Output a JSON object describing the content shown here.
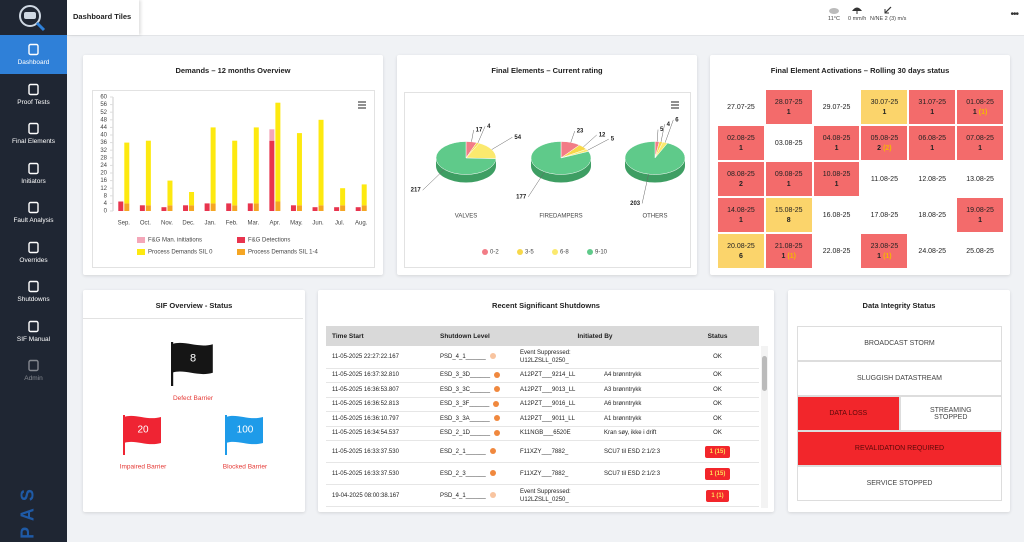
{
  "header": {
    "tab": "Dashboard Tiles",
    "weather": {
      "temperature": "11°C",
      "precipitation": "0 mm/h",
      "wind": "N/NE 2 (3) m/s"
    },
    "menu": "•••"
  },
  "sidebar": {
    "items": [
      "Dashboard",
      "Proof Tests",
      "Final Elements",
      "Initiators",
      "Fault Analysis",
      "Overrides",
      "Shutdowns",
      "SIF Manual",
      "Admin"
    ],
    "active": 0,
    "disabled": [
      8
    ],
    "brand": "PAS"
  },
  "chart_data": [
    {
      "type": "bar",
      "title": "Demands – 12 months Overview",
      "categories": [
        "Sep.",
        "Oct.",
        "Nov.",
        "Dec.",
        "Jan.",
        "Feb.",
        "Mar.",
        "Apr.",
        "May.",
        "Jun.",
        "Jul.",
        "Aug."
      ],
      "series": [
        {
          "name": "F&G Man. initiations",
          "color": "#f4a7b9",
          "stack": "F&G",
          "values": [
            0,
            0,
            0,
            0,
            0,
            0,
            0,
            6,
            0,
            0,
            0,
            0
          ]
        },
        {
          "name": "F&G Detections",
          "color": "#e8344e",
          "stack": "F&G",
          "values": [
            5,
            3,
            2,
            3,
            4,
            4,
            4,
            37,
            3,
            2,
            2,
            2
          ]
        },
        {
          "name": "Process Demands SIL 0",
          "color": "#fde910",
          "stack": "Process",
          "values": [
            32,
            34,
            13,
            7,
            40,
            34,
            40,
            52,
            38,
            45,
            9,
            11
          ]
        },
        {
          "name": "Process Demands SIL 1-4",
          "color": "#f5a623",
          "stack": "Process",
          "values": [
            4,
            3,
            3,
            3,
            4,
            3,
            4,
            5,
            3,
            3,
            3,
            3
          ]
        }
      ],
      "ylim": [
        0,
        60
      ],
      "yticks": [
        0,
        4,
        8,
        12,
        16,
        20,
        24,
        28,
        32,
        36,
        40,
        44,
        48,
        52,
        56,
        60
      ],
      "grid": false
    },
    {
      "type": "pie",
      "title": "Final Elements – Current rating",
      "categories": [
        "0-2",
        "3-5",
        "6-8",
        "9-10"
      ],
      "colors": [
        "#f27c86",
        "#f7d84a",
        "#fbe96e",
        "#5fca8a"
      ],
      "series": [
        {
          "name": "VALVES",
          "values": [
            17,
            4,
            54,
            217
          ]
        },
        {
          "name": "FIREDAMPERS",
          "values": [
            23,
            12,
            5,
            177
          ]
        },
        {
          "name": "OTHERS",
          "values": [
            5,
            4,
            6,
            203
          ]
        }
      ]
    }
  ],
  "activations": {
    "title": "Final Element Activations – Rolling 30 days status",
    "cells": [
      {
        "date": "27.07-25",
        "color": "#ffffff"
      },
      {
        "date": "28.07-25",
        "count": 1,
        "color": "#f36b6b"
      },
      {
        "date": "29.07-25",
        "color": "#ffffff"
      },
      {
        "date": "30.07-25",
        "count": 1,
        "color": "#fbd46b"
      },
      {
        "date": "31.07-25",
        "count": 1,
        "color": "#f36b6b"
      },
      {
        "date": "01.08-25",
        "count": 1,
        "extra": "(1)",
        "color": "#f36b6b"
      },
      {
        "date": "02.08-25",
        "count": 1,
        "color": "#f36b6b"
      },
      {
        "date": "03.08-25",
        "color": "#ffffff"
      },
      {
        "date": "04.08-25",
        "count": 1,
        "color": "#f36b6b"
      },
      {
        "date": "05.08-25",
        "count": 2,
        "extra": "(2)",
        "color": "#f36b6b"
      },
      {
        "date": "06.08-25",
        "count": 1,
        "color": "#f36b6b"
      },
      {
        "date": "07.08-25",
        "count": 1,
        "color": "#f36b6b"
      },
      {
        "date": "08.08-25",
        "count": 2,
        "color": "#f36b6b"
      },
      {
        "date": "09.08-25",
        "count": 1,
        "color": "#f36b6b"
      },
      {
        "date": "10.08-25",
        "count": 1,
        "color": "#f36b6b"
      },
      {
        "date": "11.08-25",
        "color": "#ffffff"
      },
      {
        "date": "12.08-25",
        "color": "#ffffff"
      },
      {
        "date": "13.08-25",
        "color": "#ffffff"
      },
      {
        "date": "14.08-25",
        "count": 1,
        "color": "#f36b6b"
      },
      {
        "date": "15.08-25",
        "count": 8,
        "color": "#fbd46b"
      },
      {
        "date": "16.08-25",
        "color": "#ffffff"
      },
      {
        "date": "17.08-25",
        "color": "#ffffff"
      },
      {
        "date": "18.08-25",
        "color": "#ffffff"
      },
      {
        "date": "19.08-25",
        "count": 1,
        "color": "#f36b6b"
      },
      {
        "date": "20.08-25",
        "count": 6,
        "color": "#fbd46b"
      },
      {
        "date": "21.08-25",
        "count": 1,
        "extra": "(1)",
        "color": "#f36b6b"
      },
      {
        "date": "22.08-25",
        "color": "#ffffff"
      },
      {
        "date": "23.08-25",
        "count": 1,
        "extra": "(1)",
        "color": "#f36b6b"
      },
      {
        "date": "24.08-25",
        "color": "#ffffff"
      },
      {
        "date": "25.08-25",
        "color": "#ffffff"
      }
    ]
  },
  "sif_overview": {
    "title": "SIF Overview - Status",
    "barriers": [
      {
        "label": "Defect Barrier",
        "count": 8,
        "color": "#151515"
      },
      {
        "label": "Impaired Barrier",
        "count": 20,
        "color": "#ef2433"
      },
      {
        "label": "Blocked Barrier",
        "count": 100,
        "color": "#1e9be9"
      }
    ]
  },
  "shutdowns": {
    "title": "Recent Significant Shutdowns",
    "columns": [
      "Time Start",
      "Shutdown Level",
      "Initiated By",
      "Status"
    ],
    "rows": [
      {
        "time": "11-05-2025 22:27:22.167",
        "level": "PSD_4_1______",
        "dot": "#f8c4a0",
        "tag": "Event Suppressed: U12LZSLL_0250_",
        "status": "OK"
      },
      {
        "time": "11-05-2025 16:37:32.810",
        "level": "ESD_3_3D______",
        "dot": "#f0883e",
        "tag": "A12PZT___9214_LL",
        "description": "A4 brønntrykk",
        "status": "OK"
      },
      {
        "time": "11-05-2025 16:36:53.807",
        "level": "ESD_3_3C______",
        "dot": "#f0883e",
        "tag": "A12PZT___9013_LL",
        "description": "A3 brønntrykk",
        "status": "OK"
      },
      {
        "time": "11-05-2025 16:36:52.813",
        "level": "ESD_3_3F______",
        "dot": "#f0883e",
        "tag": "A12PZT___9016_LL",
        "description": "A6 brønntrykk",
        "status": "OK"
      },
      {
        "time": "11-05-2025 16:36:10.797",
        "level": "ESD_3_3A______",
        "dot": "#f0883e",
        "tag": "A12PZT___9011_LL",
        "description": "A1 brønntrykk",
        "status": "OK"
      },
      {
        "time": "11-05-2025 16:34:54.537",
        "level": "ESD_2_1D______",
        "dot": "#f0883e",
        "tag": "K11NGB___6520E",
        "description": "Kran søy, ikke i drift",
        "status": "OK"
      },
      {
        "time": "11-05-2025 16:33:37.530",
        "level": "ESD_2_1______",
        "dot": "#f0883e",
        "tag": "F11XZY___7882_",
        "description": "SCU7 til ESD 2:1/2:3",
        "status": "1 (15)",
        "badge": "#f2262b"
      },
      {
        "time": "11-05-2025 16:33:37.530",
        "level": "ESD_2_3______",
        "dot": "#f0883e",
        "tag": "F11XZY___7882_",
        "description": "SCU7 til ESD 2:1/2:3",
        "status": "1 (15)",
        "badge": "#f2262b"
      },
      {
        "time": "19-04-2025 08:00:38.167",
        "level": "PSD_4_1______",
        "dot": "#f8c4a0",
        "tag": "Event Suppressed: U12LZSLL_0250_",
        "status": "1 (1)",
        "badge": "#f2262b"
      }
    ]
  },
  "data_integrity": {
    "title": "Data Integrity Status",
    "rows": [
      [
        {
          "label": "BROADCAST STORM",
          "color": "#ffffff"
        }
      ],
      [
        {
          "label": "SLUGGISH DATASTREAM",
          "color": "#ffffff"
        }
      ],
      [
        {
          "label": "DATA LOSS",
          "color": "#f2262b"
        },
        {
          "label": "STREAMING STOPPED",
          "color": "#ffffff"
        }
      ],
      [
        {
          "label": "REVALIDATION REQUIRED",
          "color": "#f2262b"
        }
      ],
      [
        {
          "label": "SERVICE STOPPED",
          "color": "#ffffff"
        }
      ]
    ]
  }
}
